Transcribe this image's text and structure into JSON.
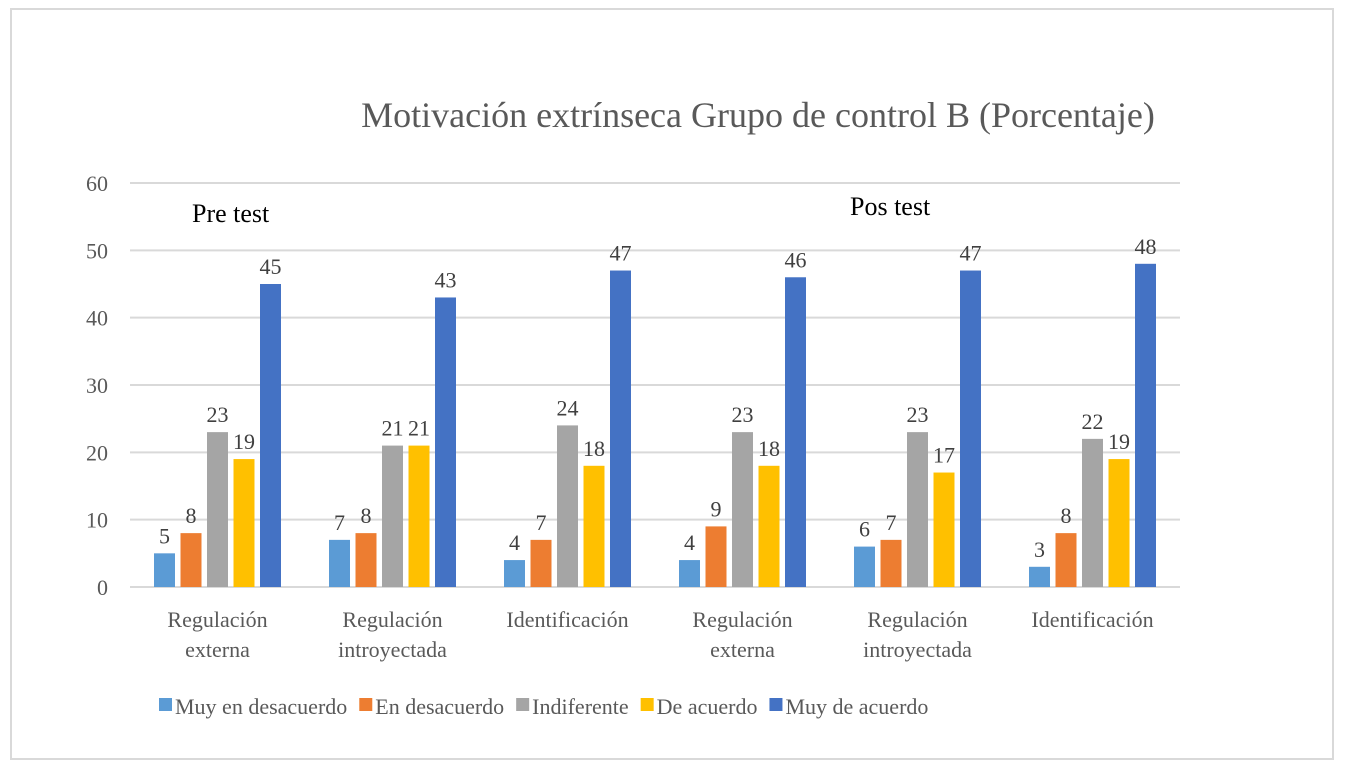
{
  "chart_data": {
    "type": "bar",
    "title": "Motivación extrínseca Grupo de control B (Porcentaje)",
    "xlabel": "",
    "ylabel": "",
    "ylim": [
      0,
      60
    ],
    "yticks": [
      0,
      10,
      20,
      30,
      40,
      50,
      60
    ],
    "grid": true,
    "legend_position": "bottom",
    "categories": [
      [
        "Regulación",
        "externa"
      ],
      [
        "Regulación",
        "introyectada"
      ],
      [
        "Identificación"
      ],
      [
        "Regulación",
        "externa"
      ],
      [
        "Regulación",
        "introyectada"
      ],
      [
        "Identificación"
      ]
    ],
    "series": [
      {
        "name": "Muy en desacuerdo",
        "color": "#5b9bd5",
        "values": [
          5,
          7,
          4,
          4,
          6,
          3
        ]
      },
      {
        "name": "En desacuerdo",
        "color": "#ed7d31",
        "values": [
          8,
          8,
          7,
          9,
          7,
          8
        ]
      },
      {
        "name": "Indiferente",
        "color": "#a5a5a5",
        "values": [
          23,
          21,
          24,
          23,
          23,
          22
        ]
      },
      {
        "name": "De acuerdo",
        "color": "#ffc000",
        "values": [
          19,
          21,
          18,
          18,
          17,
          19
        ]
      },
      {
        "name": "Muy de acuerdo",
        "color": "#4472c4",
        "values": [
          45,
          43,
          47,
          46,
          47,
          48
        ]
      }
    ],
    "annotations": [
      {
        "text": "Pre test",
        "applies_to_categories": [
          0,
          1,
          2
        ]
      },
      {
        "text": "Pos test",
        "applies_to_categories": [
          3,
          4,
          5
        ]
      }
    ]
  }
}
